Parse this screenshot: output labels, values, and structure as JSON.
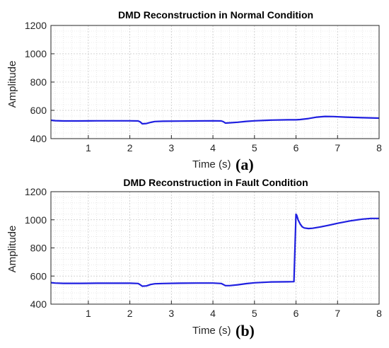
{
  "chart_data": [
    {
      "type": "line",
      "panel_label": "(a)",
      "title": "DMD Reconstruction in Normal Condition",
      "xlabel": "Time (s)",
      "ylabel": "Amplitude",
      "xlim": [
        0.1,
        8
      ],
      "ylim": [
        400,
        1200
      ],
      "xticks": [
        1,
        2,
        3,
        4,
        5,
        6,
        7,
        8
      ],
      "yticks": [
        400,
        600,
        800,
        1000,
        1200
      ],
      "grid": true,
      "minor_grid": true,
      "color": "#1f1fe0",
      "series": [
        {
          "x": [
            0.1,
            0.2,
            0.4,
            0.8,
            1.2,
            1.6,
            2.0,
            2.2,
            2.25,
            2.3,
            2.4,
            2.5,
            2.6,
            2.8,
            3.2,
            3.6,
            4.0,
            4.2,
            4.25,
            4.3,
            4.4,
            4.6,
            4.8,
            5.0,
            5.4,
            5.8,
            6.0,
            6.1,
            6.3,
            6.5,
            6.7,
            6.9,
            7.2,
            7.6,
            8.0
          ],
          "y": [
            530,
            527,
            525,
            525,
            526,
            526,
            526,
            525,
            518,
            505,
            507,
            515,
            521,
            523,
            524,
            525,
            526,
            525,
            520,
            510,
            512,
            516,
            522,
            526,
            531,
            533,
            533,
            535,
            542,
            552,
            557,
            556,
            552,
            548,
            545
          ]
        }
      ]
    },
    {
      "type": "line",
      "panel_label": "(b)",
      "title": "DMD Reconstruction in Fault Condition",
      "xlabel": "Time (s)",
      "ylabel": "Amplitude",
      "xlim": [
        0.1,
        8
      ],
      "ylim": [
        400,
        1200
      ],
      "xticks": [
        1,
        2,
        3,
        4,
        5,
        6,
        7,
        8
      ],
      "yticks": [
        400,
        600,
        800,
        1000,
        1200
      ],
      "grid": true,
      "minor_grid": true,
      "color": "#1f1fe0",
      "series": [
        {
          "x": [
            0.1,
            0.2,
            0.4,
            0.8,
            1.2,
            1.6,
            2.0,
            2.2,
            2.25,
            2.3,
            2.4,
            2.5,
            2.6,
            2.8,
            3.2,
            3.6,
            4.0,
            4.2,
            4.25,
            4.3,
            4.4,
            4.6,
            4.8,
            5.0,
            5.4,
            5.8,
            5.95,
            6.0,
            6.02,
            6.05,
            6.1,
            6.15,
            6.2,
            6.3,
            6.4,
            6.6,
            6.8,
            7.0,
            7.3,
            7.6,
            7.8,
            8.0
          ],
          "y": [
            553,
            550,
            548,
            548,
            549,
            549,
            549,
            547,
            538,
            528,
            530,
            540,
            545,
            547,
            549,
            550,
            550,
            547,
            540,
            532,
            532,
            538,
            546,
            552,
            558,
            559,
            560,
            1040,
            1030,
            1000,
            970,
            950,
            942,
            938,
            940,
            950,
            962,
            975,
            992,
            1005,
            1010,
            1010
          ]
        }
      ]
    }
  ]
}
